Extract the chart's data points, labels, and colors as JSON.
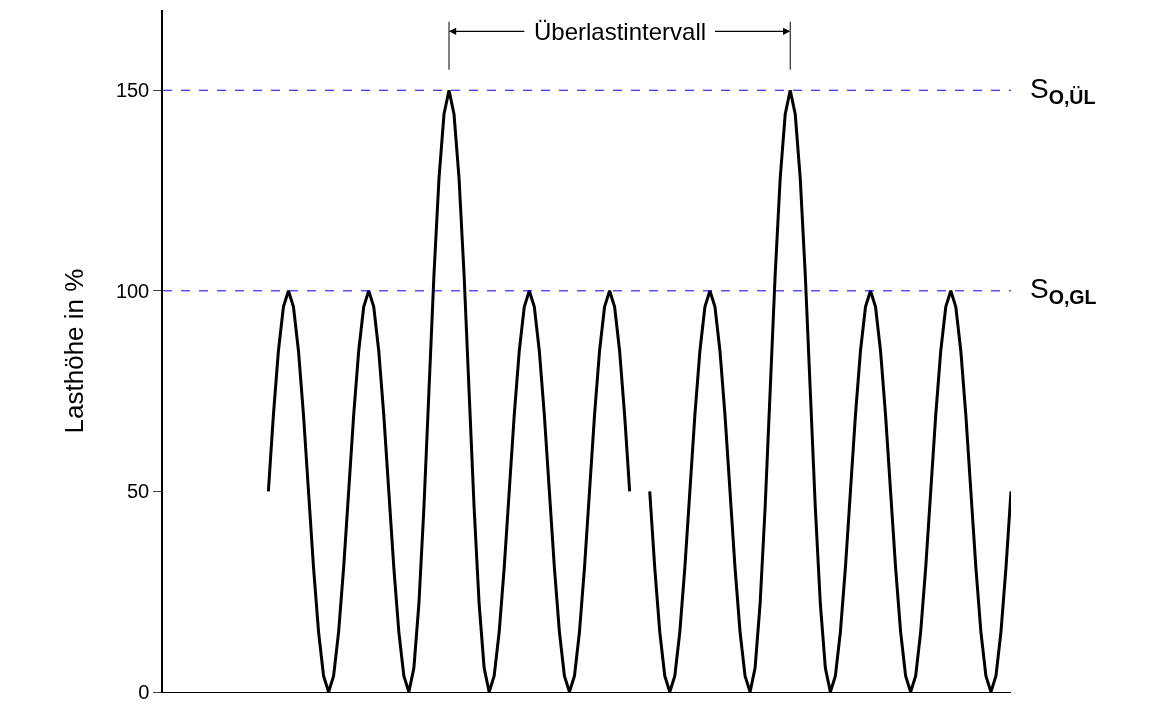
{
  "chart_data": {
    "type": "line",
    "ylabel": "Lasthöhe in %",
    "categories": [
      null,
      null,
      null,
      null,
      null,
      null,
      null,
      null,
      null,
      null,
      null,
      null,
      null,
      null,
      null,
      null,
      null,
      null,
      null,
      null,
      null,
      null,
      null,
      null,
      null,
      null,
      null,
      null,
      null,
      null,
      null,
      null,
      null,
      null,
      null,
      null,
      null,
      null,
      null,
      null,
      null,
      null,
      null,
      null,
      null,
      null,
      null,
      null,
      null,
      null,
      null,
      null,
      null,
      null,
      null,
      null,
      null,
      null,
      null,
      null,
      null,
      null,
      null,
      null,
      null,
      null,
      null,
      null,
      null,
      null,
      null,
      null,
      null,
      null,
      null,
      null,
      null,
      null,
      null,
      null,
      null,
      null,
      null,
      null,
      null,
      null,
      null,
      null,
      null,
      null,
      null,
      null,
      null,
      null,
      null,
      null,
      null,
      null,
      null,
      null,
      null,
      null,
      null,
      null,
      null,
      null,
      null,
      null,
      null,
      null,
      null,
      null,
      null,
      null,
      null,
      null,
      null,
      null,
      null,
      null,
      null,
      null,
      null,
      null,
      null,
      null,
      null,
      null,
      null,
      null,
      null,
      null,
      null,
      null,
      null,
      null,
      null,
      null,
      null,
      null,
      null,
      null,
      null,
      null,
      null,
      null,
      null,
      null,
      null,
      null,
      null,
      null,
      null,
      null,
      null,
      null,
      null,
      null,
      null,
      null,
      null,
      null,
      null,
      null,
      null,
      null,
      null,
      null,
      null,
      null
    ],
    "series": [
      {
        "color": "#000000",
        "values": [
          null,
          null,
          null,
          null,
          null,
          null,
          null,
          null,
          null,
          null,
          null,
          null,
          null,
          null,
          null,
          null,
          null,
          null,
          null,
          null,
          null,
          50,
          69,
          85,
          96,
          100,
          96,
          85,
          69,
          50,
          31,
          15,
          4,
          0,
          4,
          15,
          31,
          50,
          69,
          85,
          96,
          100,
          96,
          85,
          69,
          50,
          31,
          15,
          4,
          0,
          6,
          22,
          46,
          75,
          104,
          128,
          144,
          150,
          144,
          128,
          104,
          75,
          46,
          22,
          6,
          0,
          4,
          15,
          31,
          50,
          69,
          85,
          96,
          100,
          96,
          85,
          69,
          50,
          31,
          15,
          4,
          0,
          4,
          15,
          31,
          50,
          69,
          85,
          96,
          100,
          96,
          85,
          69,
          50,
          null,
          null,
          null,
          50,
          31,
          15,
          4,
          0,
          4,
          15,
          31,
          50,
          69,
          85,
          96,
          100,
          96,
          85,
          69,
          50,
          31,
          15,
          4,
          0,
          6,
          22,
          46,
          75,
          104,
          128,
          144,
          150,
          144,
          128,
          104,
          75,
          46,
          22,
          6,
          0,
          4,
          15,
          31,
          50,
          69,
          85,
          96,
          100,
          96,
          85,
          69,
          50,
          31,
          15,
          4,
          0,
          4,
          15,
          31,
          50,
          69,
          85,
          96,
          100,
          96,
          85,
          69,
          50,
          31,
          15,
          4,
          0,
          4,
          15,
          31,
          50
        ]
      }
    ],
    "ylim": [
      0,
      170
    ],
    "yticks": [
      0,
      50,
      100,
      150
    ],
    "legend": false,
    "marker": "none",
    "line_style": "solid",
    "tick_labels": "y",
    "ref_lines": [
      {
        "axis": "y",
        "value": 150,
        "label": "S$_{O,ÜL}$",
        "color": "#0000ff",
        "line_style": "dashed"
      },
      {
        "axis": "y",
        "value": 100,
        "label": "S$_{O,GL}$",
        "color": "#0000ff",
        "line_style": "dashed"
      }
    ],
    "annotations": [
      "Überlastintervall"
    ]
  }
}
